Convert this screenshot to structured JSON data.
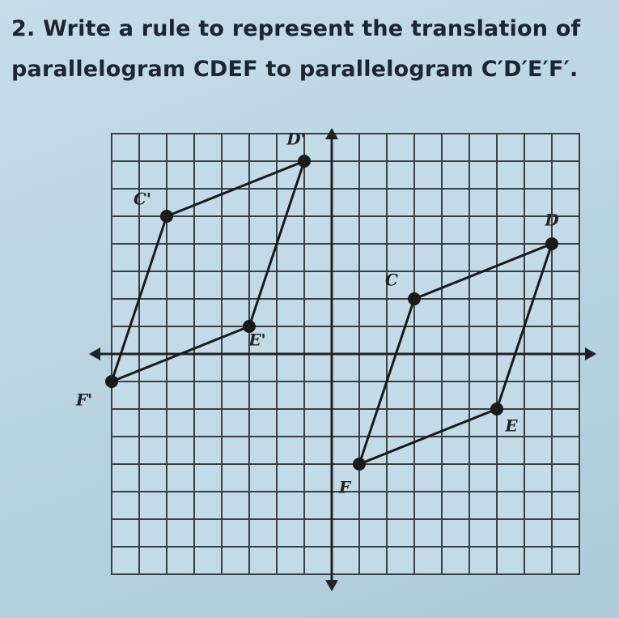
{
  "question": {
    "number": "2.",
    "line1": "Write a rule to represent the translation of",
    "line2": "parallelogram CDEF to parallelogram C′D′E′F′."
  },
  "points": {
    "c_prime": "C'",
    "d_prime": "D'",
    "e_prime": "E'",
    "f_prime": "F'",
    "c": "C",
    "d": "D",
    "e": "E",
    "f": "F"
  }
}
